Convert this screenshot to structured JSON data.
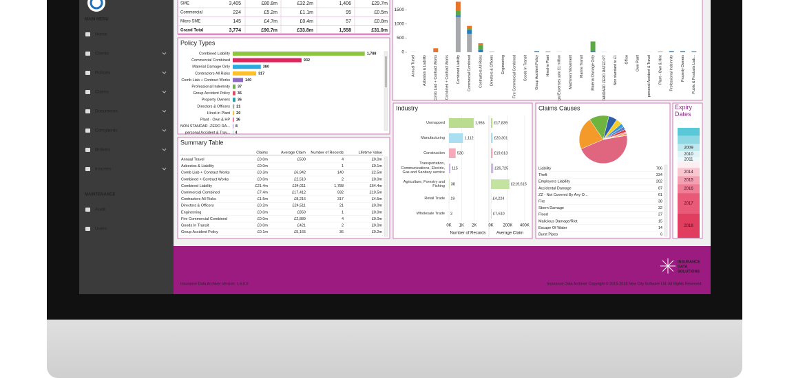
{
  "sidebar": {
    "menu_heading": "MAIN MENU",
    "items": [
      "Home",
      "Clients",
      "Policies",
      "Claims",
      "Documents",
      "Complaints",
      "Brokers",
      "Insurers"
    ],
    "maintenance_heading": "MAINTENANCE",
    "maintenance_items": [
      "Audit",
      "Users"
    ]
  },
  "top_table": {
    "rows": [
      [
        "SME",
        "3,405",
        "£80.8m",
        "£32.2m",
        "1,406",
        "£29.7m"
      ],
      [
        "Commercial",
        "224",
        "£5.2m",
        "£1.1m",
        "95",
        "£0.5m"
      ],
      [
        "Micro SME",
        "145",
        "£4.7m",
        "£0.4m",
        "57",
        "£0.8m"
      ],
      [
        "Grand Total",
        "3,774",
        "£90.7m",
        "£33.8m",
        "1,558",
        "£31.0m"
      ]
    ]
  },
  "chart_data": [
    {
      "type": "stacked_bar",
      "categories": [
        "Annual Travel",
        "Asbestos & Liability",
        "Comb Liab + Contract Works",
        "Combined + Contract Works",
        "Combined Liability",
        "Commercial Combined",
        "Contractors All Risks",
        "Directors & Officers",
        "Engineering",
        "Fire Commercial Combined",
        "Goods In Transit",
        "Group Accident Policy",
        "Hired-in Plant",
        "Legal Expenses upto £1 million",
        "Machinery Movement",
        "Marine Transit",
        "Material Damage Only",
        "NON STANDARD ZERO RATED PT",
        "Non standard to £1",
        "Office",
        "Own Plant",
        "personal Accident & Travel",
        "Plant - Own & Hire",
        "Professional Indemnity",
        "Property Owners",
        "Public & Products Liab..."
      ],
      "series": [
        {
          "color": "#a7a9ac",
          "values": [
            0,
            1,
            0,
            2,
            1250,
            650,
            0,
            21,
            1,
            4,
            2,
            0,
            0,
            0,
            3,
            2,
            0,
            8,
            2,
            1,
            1,
            4,
            0,
            0,
            0,
            0
          ]
        },
        {
          "color": "#2b7bba",
          "values": [
            4,
            0,
            0,
            0,
            60,
            130,
            90,
            0,
            0,
            0,
            0,
            36,
            20,
            5,
            0,
            0,
            40,
            0,
            0,
            0,
            0,
            0,
            16,
            37,
            36,
            30
          ]
        },
        {
          "color": "#5aa846",
          "values": [
            0,
            0,
            0,
            0,
            150,
            70,
            160,
            0,
            0,
            0,
            0,
            0,
            0,
            0,
            0,
            0,
            340,
            0,
            0,
            0,
            0,
            0,
            0,
            0,
            0,
            0
          ]
        },
        {
          "color": "#e8742a",
          "values": [
            0,
            0,
            140,
            0,
            328,
            82,
            67,
            0,
            0,
            0,
            0,
            0,
            0,
            0,
            0,
            0,
            0,
            0,
            0,
            0,
            0,
            0,
            0,
            0,
            0,
            0
          ]
        }
      ],
      "ylim": [
        0,
        1800
      ],
      "yticks": [
        0,
        500,
        1000,
        1500
      ]
    },
    {
      "type": "hbar",
      "title": "Policy Types",
      "categories": [
        "Combined Liability",
        "Commercial Combined",
        "Material Damage Only",
        "Contractors All Risks",
        "Comb Liab + Contract Works",
        "Professional Indemnity",
        "Group Accident Policy",
        "Property Owners",
        "Directors & Officers",
        "Hired-in Plant",
        "Plant - Own & HP",
        "NON STANDAR -ZERO RA...",
        "personal Accident & Trav..."
      ],
      "values": [
        1788,
        932,
        380,
        317,
        140,
        37,
        36,
        36,
        21,
        20,
        16,
        8,
        4
      ],
      "value_labels": [
        "1,788",
        "932",
        "380",
        "317",
        "140",
        "37",
        "36",
        "36",
        "21",
        "20",
        "16",
        "8",
        "4"
      ],
      "colors": [
        "#8dc63f",
        "#e0245e",
        "#29abe2",
        "#fbc02d",
        "#8e6bbf",
        "#6ab04c",
        "#e04a5f",
        "#1fa3a8",
        "#a7a9ac",
        "#f0c24d",
        "#f06292",
        "#9575cd",
        "#4db6ac"
      ],
      "xlim": [
        0,
        1800
      ]
    },
    {
      "type": "hbar_pair",
      "title": "Industry",
      "categories": [
        "Unmapped",
        "Manufacturing",
        "Construction",
        "Transportation, Communications, Electric, Gas and Sanitary service",
        "Agriculture, Forestry and Fishing",
        "Retail Trade",
        "Wholesale Trade"
      ],
      "colors": [
        "#b9dc8f",
        "#a9dff0",
        "#f4aab9",
        "#cdb8e8",
        "#c5e3a0",
        "#d9d9d9",
        "#e6d2a8"
      ],
      "series": [
        {
          "name": "Number of Records",
          "values": [
            1956,
            1112,
            530,
            115,
            38,
            19,
            2
          ],
          "value_labels": [
            "1,956",
            "1,112",
            "530",
            "115",
            "38",
            "19",
            "2"
          ],
          "xlim": [
            0,
            3000
          ],
          "xticks": [
            {
              "value": 0,
              "label": "0K"
            },
            {
              "value": 1000,
              "label": "1K"
            },
            {
              "value": 2000,
              "label": "2K"
            }
          ]
        },
        {
          "name": "Average Claim",
          "values": [
            17839,
            20301,
            19613,
            26725,
            219615,
            4224,
            7610
          ],
          "value_labels": [
            "£17,839",
            "£20,301",
            "£19,613",
            "£26,725",
            "£219,615",
            "£4,224",
            "£7,610"
          ],
          "xlim": [
            0,
            450000
          ],
          "xticks": [
            {
              "value": 0,
              "label": "0K"
            },
            {
              "value": 200000,
              "label": "200K"
            },
            {
              "value": 400000,
              "label": "400K"
            }
          ]
        }
      ]
    },
    {
      "type": "pie",
      "title": "Claims Causes",
      "categories": [
        "Liability",
        "Theft",
        "Employers Liability",
        "Accidental Damage",
        "ZZ - Not Covered By Any O...",
        "Fire",
        "Storm Damage",
        "Flood",
        "Malicious Damage/Riot",
        "Escape Of Water",
        "Burst Pipes"
      ],
      "values": [
        706,
        334,
        202,
        87,
        61,
        38,
        32,
        27,
        15,
        14,
        6
      ],
      "colors": [
        "#e06680",
        "#f39a2b",
        "#6fb43f",
        "#2e5fa8",
        "#f2cf2b",
        "#3a9bd9",
        "#5b7ec9",
        "#e53935",
        "#f48fb1",
        "#ef8a1b",
        "#f7a23d"
      ]
    },
    {
      "type": "stacked_column",
      "title": "Expiry Dates",
      "categories": [
        null,
        null,
        "2009",
        "2010",
        "2011",
        null,
        "2014",
        "2015",
        "2016",
        "2017",
        "2018"
      ],
      "values": [
        40,
        40,
        36,
        28,
        24,
        30,
        40,
        40,
        44,
        100,
        120
      ],
      "colors": [
        "#5bc8d8",
        "#8fd7e2",
        "#bfe8ef",
        "#dff3f6",
        "#eef8fa",
        "#fdeef1",
        "#f9c6d0",
        "#f4a0b3",
        "#ee7d95",
        "#e85a78",
        "#e03d5f"
      ]
    }
  ],
  "summary_table": {
    "title": "Summary Table",
    "columns": [
      "Claims",
      "Average Claim",
      "Number of Records",
      "Lifetime Value"
    ],
    "rows": [
      [
        "Annual Travel",
        "£0.0m",
        "£500",
        "4",
        "£0.0m"
      ],
      [
        "Asbestos & Liability",
        "£0.0m",
        null,
        "1",
        "£0.1m"
      ],
      [
        "Comb Liab + Contract Works",
        "£0.3m",
        "£6,942",
        "140",
        "£2.5m"
      ],
      [
        "Combined + Contract Works",
        "£0.0m",
        "£2,510",
        "2",
        "£0.0m"
      ],
      [
        "Combined Liability",
        "£21.4m",
        "£34,011",
        "1,788",
        "£64.4m"
      ],
      [
        "Commercial Combined",
        "£7.4m",
        "£17,412",
        "932",
        "£10.5m"
      ],
      [
        "Contractors All Risks",
        "£1.5m",
        "£8,216",
        "317",
        "£4.5m"
      ],
      [
        "Directors & Officers",
        "£0.2m",
        "£24,511",
        "21",
        "£0.0m"
      ],
      [
        "Engineering",
        "£0.0m",
        "£850",
        "1",
        "£0.0m"
      ],
      [
        "Fire Commercial Combined",
        "£0.0m",
        "£2,889",
        "4",
        "£0.0m"
      ],
      [
        "Goods In Transit",
        "£0.0m",
        "£421",
        "2",
        "£0.0m"
      ],
      [
        "Group Accident Policy",
        "£0.1m",
        "£5,165",
        "36",
        "£0.2m"
      ]
    ]
  },
  "footer": {
    "version": "Insurance Data Archiver Version: 1.5.0.0",
    "copyright": "Insurance Data Archiver Copyright © 2015-2018 New City Software Ltd. All Rights Reserved.",
    "logo": [
      "INSURANCE",
      "DATA",
      "SOLUTIONS"
    ]
  }
}
